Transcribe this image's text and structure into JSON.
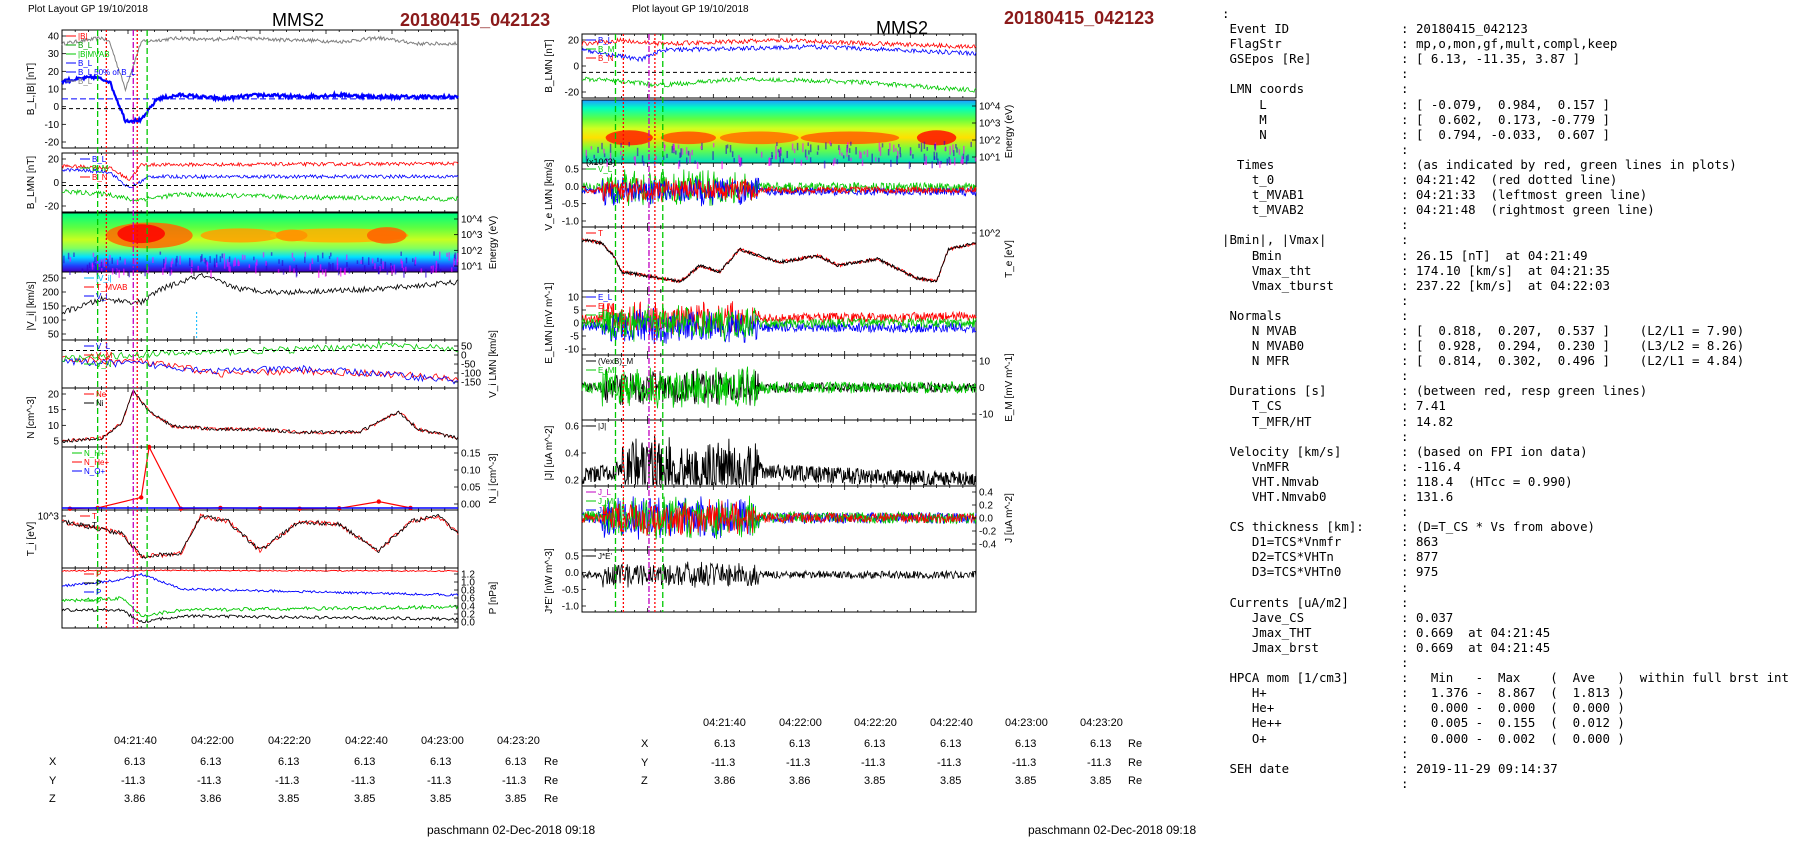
{
  "colors": {
    "red": "#ff0000",
    "green": "#00c800",
    "blue": "#0000ff",
    "black": "#000000",
    "darkred": "#8b1a1a",
    "gray": "#808080",
    "cyan": "#00b7ff"
  },
  "left_figure": {
    "header": {
      "layout": "Plot Layout GP 19/10/2018",
      "spacecraft": "MMS2",
      "event": "20180415_042123"
    },
    "footer": "paschmann 02-Dec-2018 09:18",
    "time_ticks": [
      "04:21:40",
      "04:22:00",
      "04:22:20",
      "04:22:40",
      "04:23:00",
      "04:23:20"
    ],
    "position_table": {
      "rows": [
        {
          "label": "X",
          "values": [
            "6.13",
            "6.13",
            "6.13",
            "6.13",
            "6.13",
            "6.13"
          ],
          "unit": "Re"
        },
        {
          "label": "Y",
          "values": [
            "-11.3",
            "-11.3",
            "-11.3",
            "-11.3",
            "-11.3",
            "-11.3"
          ],
          "unit": "Re"
        },
        {
          "label": "Z",
          "values": [
            "3.86",
            "3.86",
            "3.85",
            "3.85",
            "3.85",
            "3.85"
          ],
          "unit": "Re"
        }
      ]
    }
  },
  "right_figure": {
    "header": {
      "layout": "Plot layout GP 19/10/2018",
      "spacecraft": "MMS2",
      "event": "20180415_042123"
    },
    "footer": "paschmann 02-Dec-2018 09:18",
    "time_ticks": [
      "04:21:40",
      "04:22:00",
      "04:22:20",
      "04:22:40",
      "04:23:00",
      "04:23:20"
    ],
    "position_table": {
      "rows": [
        {
          "label": "X",
          "values": [
            "6.13",
            "6.13",
            "6.13",
            "6.13",
            "6.13",
            "6.13"
          ],
          "unit": "Re"
        },
        {
          "label": "Y",
          "values": [
            "-11.3",
            "-11.3",
            "-11.3",
            "-11.3",
            "-11.3",
            "-11.3"
          ],
          "unit": "Re"
        },
        {
          "label": "Z",
          "values": [
            "3.86",
            "3.86",
            "3.85",
            "3.85",
            "3.85",
            "3.85"
          ],
          "unit": "Re"
        }
      ]
    }
  },
  "chart_data": [
    {
      "id": "L1",
      "type": "line",
      "ylabel": "B_L,|B| [nT]",
      "ylim": [
        -20,
        40
      ],
      "yticks": [
        "40",
        "30",
        "20",
        "10",
        "0",
        "-10",
        "-20"
      ],
      "legend": [
        "|B|",
        "B_L",
        "|B|MVAB",
        "B_L",
        "B_L 50% of B_L",
        "B_L"
      ],
      "series": [
        {
          "name": "|B|",
          "color": "#808080",
          "shape": [
            [
              0,
              33
            ],
            [
              0.1,
              36
            ],
            [
              0.12,
              34
            ],
            [
              0.16,
              10
            ],
            [
              0.2,
              34
            ],
            [
              0.3,
              36
            ],
            [
              0.35,
              35
            ],
            [
              0.45,
              36
            ],
            [
              0.55,
              35
            ],
            [
              0.6,
              35
            ],
            [
              0.7,
              34
            ],
            [
              0.8,
              36
            ],
            [
              0.9,
              33
            ],
            [
              1,
              33
            ]
          ]
        },
        {
          "name": "B_L",
          "color": "#0000ff",
          "shape": [
            [
              0,
              14
            ],
            [
              0.08,
              16
            ],
            [
              0.12,
              14
            ],
            [
              0.16,
              -6
            ],
            [
              0.2,
              -6
            ],
            [
              0.24,
              5
            ],
            [
              0.3,
              7
            ],
            [
              0.4,
              5
            ],
            [
              0.5,
              7
            ],
            [
              0.6,
              6
            ],
            [
              0.7,
              7
            ],
            [
              0.8,
              6
            ],
            [
              0.9,
              6
            ],
            [
              1,
              6
            ]
          ]
        }
      ]
    },
    {
      "id": "L2",
      "type": "line",
      "ylabel": "B_LMN [nT]",
      "ylim": [
        -40,
        30
      ],
      "yticks": [
        "20",
        "0",
        "-20"
      ],
      "legend": [
        "B_L",
        "B_M",
        "B_N"
      ]
    },
    {
      "id": "L3",
      "type": "heatmap",
      "ylabel": "Energy (eV)",
      "yticks": [
        "10^4",
        "10^3",
        "10^2",
        "10^1"
      ]
    },
    {
      "id": "L4",
      "type": "line",
      "ylabel": "|V_i| [km/s]",
      "ylim": [
        0,
        250
      ],
      "yticks": [
        "250",
        "200",
        "150",
        "100",
        "50"
      ],
      "legend": [
        "|V_i|",
        "T_MVAB",
        "V_i"
      ]
    },
    {
      "id": "L5",
      "type": "line",
      "ylabel": "V_i LMN [km/s]",
      "ylim": [
        -150,
        50
      ],
      "yticks": [
        "50",
        "0",
        "-50",
        "-100",
        "-150"
      ],
      "legend": [
        "V_L",
        "V_M",
        "V_N"
      ]
    },
    {
      "id": "L6",
      "type": "line",
      "ylabel": "N [cm^-3]",
      "ylim": [
        0,
        22
      ],
      "yticks": [
        "20",
        "15",
        "10",
        "5"
      ],
      "legend": [
        "Ne",
        "Ni"
      ]
    },
    {
      "id": "L7",
      "type": "line",
      "ylabel": "N_i [cm^-3]",
      "ylim": [
        0,
        0.15
      ],
      "yticks": [
        "0.15",
        "0.10",
        "0.05",
        "0.00"
      ],
      "legend": [
        "N_H+",
        "N_He+",
        "N_O+"
      ],
      "series": [
        {
          "name": "He+",
          "color": "#ff0000",
          "x": [
            0.02,
            0.09,
            0.2,
            0.22,
            0.3,
            0.4,
            0.5,
            0.6,
            0.7,
            0.8,
            0.88
          ],
          "values": [
            0.003,
            0.005,
            0.03,
            0.15,
            0.003,
            0.005,
            0.004,
            0.003,
            0.004,
            0.02,
            0.005
          ]
        }
      ]
    },
    {
      "id": "L8",
      "type": "line",
      "ylabel": "T_i [eV]",
      "yticks": [
        "10^3"
      ],
      "legend": [
        "T",
        "T"
      ]
    },
    {
      "id": "L9",
      "type": "line",
      "ylabel": "P [nPa]",
      "ylim": [
        0,
        1.2
      ],
      "yticks": [
        "1.2",
        "1.0",
        "0.8",
        "0.6",
        "0.4",
        "0.2",
        "0.0"
      ],
      "legend": [
        "P",
        "P",
        "P",
        "P"
      ]
    },
    {
      "id": "R1",
      "type": "line",
      "ylabel": "B_LMN [nT]",
      "ylim": [
        -35,
        25
      ],
      "yticks": [
        "20",
        "0",
        "-20"
      ],
      "legend": [
        "B_L",
        "B_M",
        "B_N"
      ]
    },
    {
      "id": "R2",
      "type": "heatmap",
      "ylabel": "Energy (eV)",
      "yticks": [
        "10^4",
        "10^3",
        "10^2",
        "10^1"
      ]
    },
    {
      "id": "R3",
      "type": "line",
      "ylabel": "V_e LMN [km/s]",
      "ylim": [
        -1.2,
        0.7
      ],
      "yticks": [
        "0.5",
        "0.0",
        "-0.5",
        "-1.0"
      ],
      "legend": [
        "V_L"
      ],
      "annotation": "(x10^3)"
    },
    {
      "id": "R4",
      "type": "line",
      "ylabel": "T_e [eV]",
      "yticks": [
        "10^2"
      ],
      "legend": [
        "T"
      ]
    },
    {
      "id": "R5",
      "type": "line",
      "ylabel": "E_LMN [mV m^-1]",
      "ylim": [
        -12,
        12
      ],
      "yticks": [
        "10",
        "5",
        "0",
        "-5",
        "-10"
      ],
      "legend": [
        "E_L",
        "E_M",
        "E_N"
      ]
    },
    {
      "id": "R6",
      "type": "line",
      "ylabel": "E_M [mV m^-1]",
      "yticks": [
        "10",
        "0",
        "-10"
      ],
      "legend": [
        "(VexB)_M",
        "E_M"
      ]
    },
    {
      "id": "R7",
      "type": "line",
      "ylabel": "|J| [uA m^-2]",
      "ylim": [
        0,
        0.6
      ],
      "yticks": [
        "0.6",
        "0.4",
        "0.2"
      ],
      "legend": [
        "|J|"
      ]
    },
    {
      "id": "R8",
      "type": "line",
      "ylabel": "J [uA m^-2]",
      "ylim": [
        -0.5,
        0.5
      ],
      "yticks": [
        "0.4",
        "0.2",
        "0.0",
        "-0.2",
        "-0.4"
      ],
      "legend": [
        "J_L",
        "J_M",
        "J_N"
      ]
    },
    {
      "id": "R9",
      "type": "line",
      "ylabel": "J*E' [nW m^-3]",
      "ylim": [
        -1.1,
        0.7
      ],
      "yticks": [
        "0.5",
        "0.0",
        "-0.5",
        "-1.0"
      ],
      "legend": [
        "J*E'"
      ]
    }
  ],
  "info_panel": {
    "lines": [
      ":",
      " Event ID               : 20180415_042123",
      " FlagStr                : mp,o,mon,gf,mult,compl,keep",
      " GSEpos [Re]            : [ 6.13, -11.35, 3.87 ]",
      "                        :",
      " LMN coords             :",
      "     L                  : [ -0.079,  0.984,  0.157 ]",
      "     M                  : [  0.602,  0.173, -0.779 ]",
      "     N                  : [  0.794, -0.033,  0.607 ]",
      "                        :",
      "  Times                 : (as indicated by red, green lines in plots)",
      "    t_0                 : 04:21:42  (red dotted line)",
      "    t_MVAB1             : 04:21:33  (leftmost green line)",
      "    t_MVAB2             : 04:21:48  (rightmost green line)",
      "                        :",
      "|Bmin|, |Vmax|          :",
      "    Bmin                : 26.15 [nT]  at 04:21:49",
      "    Vmax_tht            : 174.10 [km/s]  at 04:21:35",
      "    Vmax_tburst         : 237.22 [km/s]  at 04:22:03",
      "                        :",
      " Normals                :",
      "    N MVAB              : [  0.818,  0.207,  0.537 ]    (L2/L1 = 7.90)",
      "    N MVAB0             : [  0.928,  0.294,  0.230 ]    (L3/L2 = 8.26)",
      "    N MFR               : [  0.814,  0.302,  0.496 ]    (L2/L1 = 4.84)",
      "                        :",
      " Durations [s]          : (between red, resp green lines)",
      "    T_CS                : 7.41",
      "    T_MFR/HT            : 14.82",
      "                        :",
      " Velocity [km/s]        : (based on FPI ion data)",
      "    VnMFR               : -116.4",
      "    VHT.Nmvab           : 118.4  (HTcc = 0.990)",
      "    VHT.Nmvab0          : 131.6",
      "                        :",
      " CS thickness [km]:     : (D=T_CS * Vs from above)",
      "    D1=TCS*Vnmfr        : 863",
      "    D2=TCS*VHTn         : 877",
      "    D3=TCS*VHTn0        : 975",
      "                        :",
      " Currents [uA/m2]       :",
      "    Jave_CS             : 0.037",
      "    Jmax_THT            : 0.669  at 04:21:45",
      "    Jmax_brst           : 0.669  at 04:21:45",
      "                        :",
      " HPCA mom [1/cm3]       :   Min   -  Max    (  Ave   )  within full brst int",
      "    H+                  :   1.376 -  8.867  (  1.813 )",
      "    He+                 :   0.000 -  0.000  (  0.000 )",
      "    He++                :   0.005 -  0.155  (  0.012 )",
      "    O+                  :   0.000 -  0.002  (  0.000 )",
      "                        :",
      " SEH date               : 2019-11-29 09:14:37",
      "                        :"
    ]
  }
}
